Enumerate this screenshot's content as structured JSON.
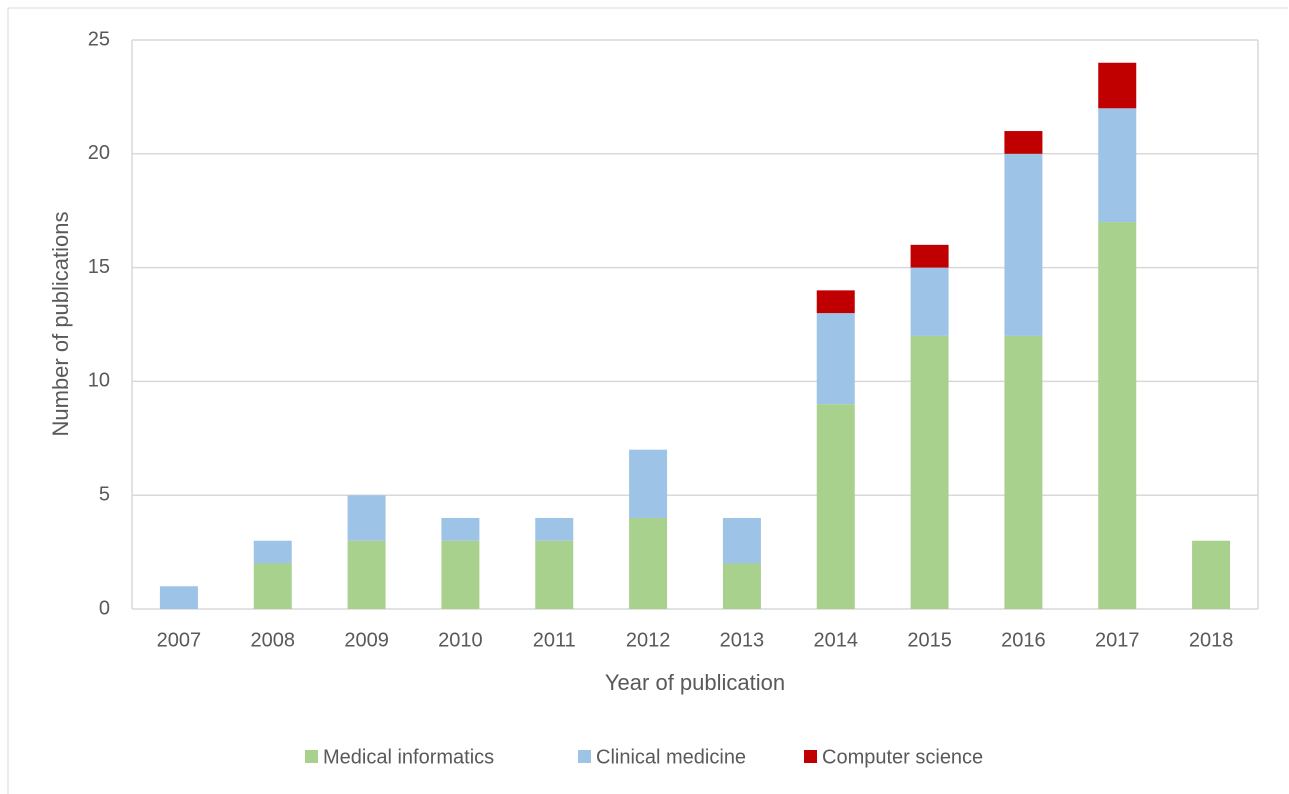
{
  "chart_data": {
    "type": "stacked_bar",
    "x_label": "Year of publication",
    "y_label": "Number of publications",
    "categories": [
      "2007",
      "2008",
      "2009",
      "2010",
      "2011",
      "2012",
      "2013",
      "2014",
      "2015",
      "2016",
      "2017",
      "2018"
    ],
    "series": [
      {
        "name": "Medical informatics",
        "color": "#a9d18e",
        "values": [
          0,
          2,
          3,
          3,
          3,
          4,
          2,
          9,
          12,
          12,
          17,
          3
        ]
      },
      {
        "name": "Clinical medicine",
        "color": "#9dc3e6",
        "values": [
          1,
          1,
          2,
          1,
          1,
          3,
          2,
          4,
          3,
          8,
          5,
          0
        ]
      },
      {
        "name": "Computer science",
        "color": "#c00000",
        "values": [
          0,
          0,
          0,
          0,
          0,
          0,
          0,
          1,
          1,
          1,
          2,
          0
        ]
      }
    ],
    "ylim": [
      0,
      25
    ],
    "yticks": [
      0,
      5,
      10,
      15,
      20,
      25
    ],
    "grid": true,
    "legend": "bottom"
  }
}
